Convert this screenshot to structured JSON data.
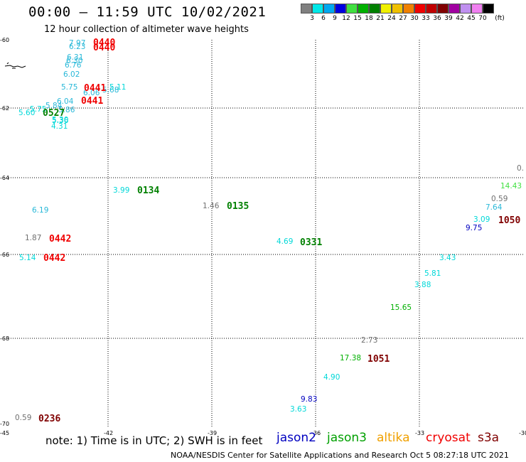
{
  "header": {
    "title": "00:00 — 11:59 UTC 10/02/2021",
    "subtitle": "12 hour collection of altimeter wave heights"
  },
  "color_scale": {
    "colors": [
      "#808080",
      "#00e8e8",
      "#00a8f0",
      "#0000e0",
      "#40e040",
      "#00b000",
      "#008000",
      "#f0f000",
      "#f0c000",
      "#f08000",
      "#f00000",
      "#c00000",
      "#800000",
      "#a000a0",
      "#c090f0",
      "#f080f0",
      "#000000"
    ],
    "labels": [
      "3",
      "6",
      "9",
      "12",
      "15",
      "18",
      "21",
      "24",
      "27",
      "30",
      "33",
      "36",
      "39",
      "42",
      "45",
      "70"
    ],
    "unit": "(ft)"
  },
  "axes": {
    "lat_labels": [
      "-60",
      "-62",
      "-64",
      "-66",
      "-68",
      "-70"
    ],
    "lon_labels": [
      "-45",
      "-42",
      "-39",
      "-36",
      "-33",
      "-30"
    ]
  },
  "observations": [
    {
      "text": "7.97",
      "color": "#28b8d8"
    },
    {
      "text": "6.23",
      "color": "#28b8d8"
    },
    {
      "text": "6.31",
      "color": "#28b8d8"
    },
    {
      "text": "6.30",
      "color": "#28b8d8"
    },
    {
      "text": "6.76",
      "color": "#28b8d8"
    },
    {
      "text": "6.02",
      "color": "#28b8d8"
    },
    {
      "text": "5.75",
      "color": "#28b8d8"
    },
    {
      "text": "6.06",
      "color": "#28b8d8"
    },
    {
      "text": "5.68",
      "color": "#28b8d8"
    },
    {
      "text": "5.11",
      "color": "#00d8d8"
    },
    {
      "text": "5.84",
      "color": "#28b8d8"
    },
    {
      "text": "6.04",
      "color": "#28b8d8"
    },
    {
      "text": "5.86",
      "color": "#28b8d8"
    },
    {
      "text": "5.75",
      "color": "#00d8d8"
    },
    {
      "text": "5.60",
      "color": "#00d8d8"
    },
    {
      "text": "5.36",
      "color": "#00d8d8"
    },
    {
      "text": "5.30",
      "color": "#00d8d8"
    },
    {
      "text": "4.31",
      "color": "#00d8d8"
    },
    {
      "text": "6.19",
      "color": "#28b8d8"
    },
    {
      "text": "1.87",
      "color": "#707070"
    },
    {
      "text": "5.14",
      "color": "#00d8d8"
    },
    {
      "text": "3.99",
      "color": "#00d8d8"
    },
    {
      "text": "1.46",
      "color": "#707070"
    },
    {
      "text": "4.69",
      "color": "#00d8d8"
    },
    {
      "text": "0.",
      "color": "#707070"
    },
    {
      "text": "14.43",
      "color": "#40e040"
    },
    {
      "text": "0.59",
      "color": "#707070"
    },
    {
      "text": "7.64",
      "color": "#28b8d8"
    },
    {
      "text": "3.09",
      "color": "#00d8d8"
    },
    {
      "text": "9.75",
      "color": "#0000c0"
    },
    {
      "text": "3.43",
      "color": "#00d8d8"
    },
    {
      "text": "5.81",
      "color": "#00d8d8"
    },
    {
      "text": "3.88",
      "color": "#00d8d8"
    },
    {
      "text": "15.65",
      "color": "#00b000"
    },
    {
      "text": "2.73",
      "color": "#707070"
    },
    {
      "text": "17.38",
      "color": "#00b000"
    },
    {
      "text": "4.90",
      "color": "#00d8d8"
    },
    {
      "text": "9.83",
      "color": "#0000c0"
    },
    {
      "text": "3.63",
      "color": "#00d8d8"
    },
    {
      "text": "0.59",
      "color": "#707070"
    }
  ],
  "time_labels": [
    {
      "text": "0440",
      "color": "#f00000"
    },
    {
      "text": "0440",
      "color": "#f00000"
    },
    {
      "text": "0441",
      "color": "#f00000"
    },
    {
      "text": "0441",
      "color": "#f00000"
    },
    {
      "text": "0527",
      "color": "#008000"
    },
    {
      "text": "0134",
      "color": "#008000"
    },
    {
      "text": "0135",
      "color": "#008000"
    },
    {
      "text": "0442",
      "color": "#f00000"
    },
    {
      "text": "0442",
      "color": "#f00000"
    },
    {
      "text": "0331",
      "color": "#008000"
    },
    {
      "text": "1050",
      "color": "#800000"
    },
    {
      "text": "1051",
      "color": "#800000"
    },
    {
      "text": "0236",
      "color": "#800000"
    }
  ],
  "footer": {
    "note": "note:  1) Time is in UTC;  2) SWH is in feet",
    "satellites": [
      {
        "name": "jason2",
        "color": "#0000c0"
      },
      {
        "name": "jason3",
        "color": "#00a000"
      },
      {
        "name": "altika",
        "color": "#f0a000"
      },
      {
        "name": "cryosat",
        "color": "#f00000"
      },
      {
        "name": "s3a",
        "color": "#800000"
      }
    ],
    "credit": "NOAA/NESDIS Center for Satellite Applications and Research     Oct  5 08:27:18 UTC 2021"
  }
}
